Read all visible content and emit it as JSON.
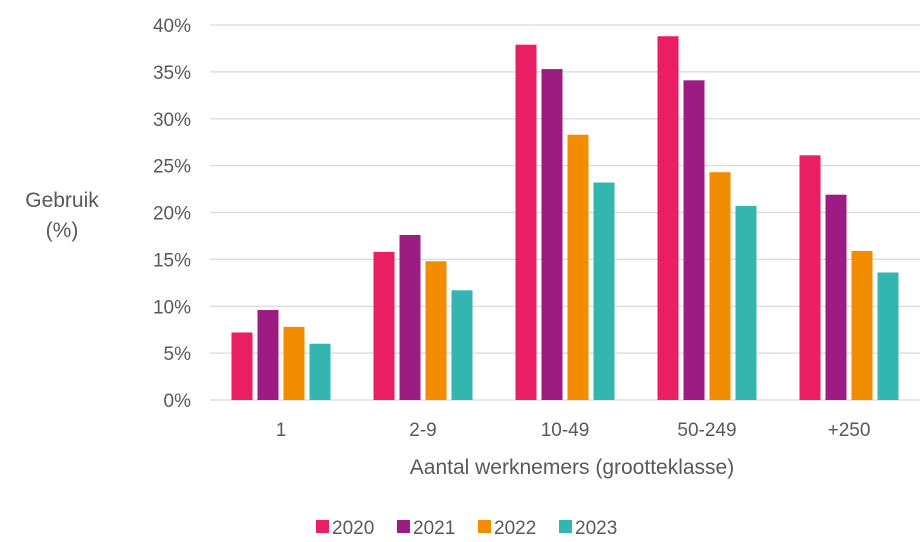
{
  "chart_data": {
    "type": "bar",
    "categories": [
      "1",
      "2-9",
      "10-49",
      "50-249",
      "+250"
    ],
    "series": [
      {
        "name": "2020",
        "color": "#E91E63",
        "values": [
          7.2,
          15.8,
          37.9,
          38.8,
          26.1
        ]
      },
      {
        "name": "2021",
        "color": "#9C1C82",
        "values": [
          9.6,
          17.6,
          35.3,
          34.1,
          21.9
        ]
      },
      {
        "name": "2022",
        "color": "#F28C00",
        "values": [
          7.8,
          14.8,
          28.3,
          24.3,
          15.9
        ]
      },
      {
        "name": "2023",
        "color": "#33B5B0",
        "values": [
          6.0,
          11.7,
          23.2,
          20.7,
          13.6
        ]
      }
    ],
    "ylabel_lines": [
      "Gebruik",
      "(%)"
    ],
    "xlabel": "Aantal werknemers (grootteklasse)",
    "ylim": [
      0,
      40
    ],
    "yticks": [
      0,
      5,
      10,
      15,
      20,
      25,
      30,
      35,
      40
    ],
    "ytick_labels": [
      "0%",
      "5%",
      "10%",
      "15%",
      "20%",
      "25%",
      "30%",
      "35%",
      "40%"
    ],
    "grid": true,
    "legend": "bottom",
    "gridline_color": "#D9D9D9"
  }
}
